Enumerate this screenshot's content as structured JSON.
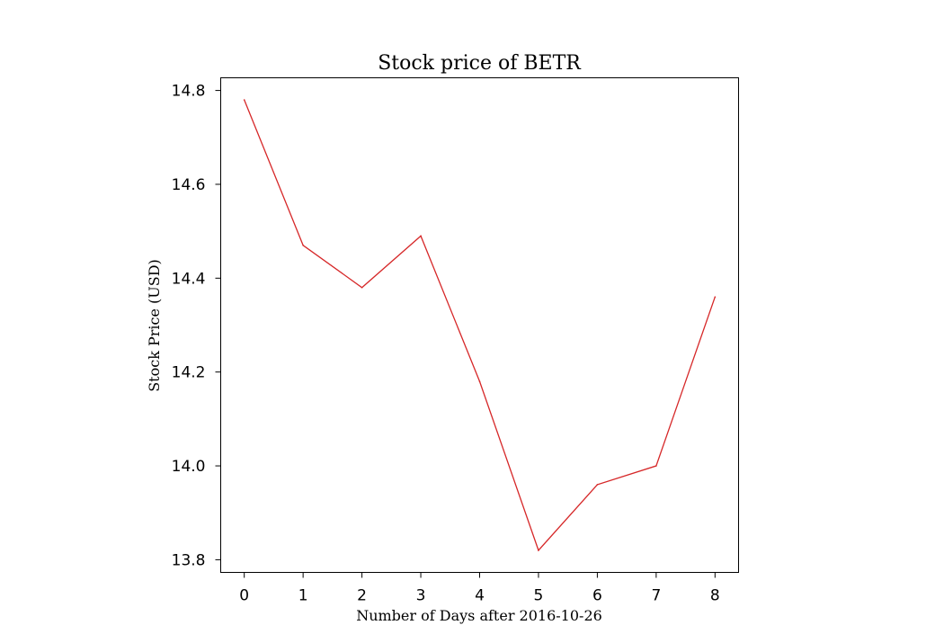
{
  "chart_data": {
    "type": "line",
    "title": "Stock price of BETR",
    "xlabel": "Number of Days after 2016-10-26",
    "ylabel": "Stock Price (USD)",
    "x": [
      0,
      1,
      2,
      3,
      4,
      5,
      6,
      7,
      8
    ],
    "series": [
      {
        "values": [
          14.78,
          14.47,
          14.38,
          14.49,
          14.18,
          13.82,
          13.96,
          14.0,
          14.36
        ],
        "color": "#d62728"
      }
    ],
    "xlim": [
      -0.4,
      8.4
    ],
    "ylim": [
      13.773,
      14.827
    ],
    "xticks": [
      0,
      1,
      2,
      3,
      4,
      5,
      6,
      7,
      8
    ],
    "xtick_labels": [
      "0",
      "1",
      "2",
      "3",
      "4",
      "5",
      "6",
      "7",
      "8"
    ],
    "yticks": [
      13.8,
      14.0,
      14.2,
      14.4,
      14.6,
      14.8
    ],
    "ytick_labels": [
      "13.8",
      "14.0",
      "14.2",
      "14.4",
      "14.6",
      "14.8"
    ],
    "grid": false,
    "legend": false
  }
}
